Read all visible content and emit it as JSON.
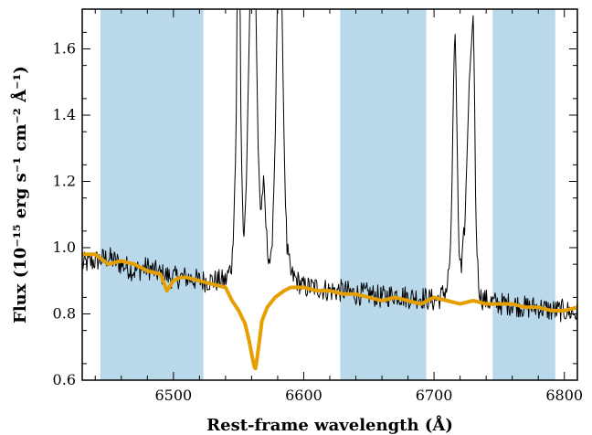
{
  "chart_data": {
    "type": "line",
    "title": "",
    "xlabel": "Rest-frame wavelength (Å)",
    "ylabel": "Flux (10⁻¹⁵ erg s⁻¹ cm⁻² Å⁻¹)",
    "xlim": [
      6430,
      6810
    ],
    "ylim": [
      0.6,
      1.72
    ],
    "xticks": [
      6500,
      6600,
      6700,
      6800
    ],
    "xtick_labels": [
      "6500",
      "6600",
      "6700",
      "6800"
    ],
    "yticks": [
      0.6,
      0.8,
      1.0,
      1.2,
      1.4,
      1.6
    ],
    "ytick_labels": [
      "0.6",
      "0.8",
      "1.0",
      "1.2",
      "1.4",
      "1.6"
    ],
    "grid": false,
    "shaded_regions": [
      {
        "x0": 6444,
        "x1": 6523
      },
      {
        "x0": 6628,
        "x1": 6694
      },
      {
        "x0": 6745,
        "x1": 6793
      }
    ],
    "colors": {
      "observed": "#000000",
      "model": "#E69F00",
      "band": "#b9d8ea"
    },
    "series": [
      {
        "style": "observed-spectrum",
        "x": [
          6430,
          6440,
          6450,
          6460,
          6470,
          6480,
          6490,
          6500,
          6510,
          6520,
          6530,
          6540,
          6545,
          6548,
          6549,
          6551,
          6552,
          6554,
          6556,
          6559,
          6561,
          6563,
          6565,
          6567,
          6569,
          6572,
          6575,
          6578,
          6580,
          6582,
          6583,
          6585,
          6587,
          6590,
          6595,
          6600,
          6610,
          6620,
          6630,
          6640,
          6650,
          6660,
          6670,
          6680,
          6690,
          6700,
          6705,
          6710,
          6713,
          6715,
          6716,
          6717,
          6719,
          6721,
          6724,
          6727,
          6730,
          6731,
          6732,
          6734,
          6736,
          6740,
          6750,
          6760,
          6770,
          6780,
          6790,
          6800,
          6810
        ],
        "y": [
          0.95,
          0.96,
          0.97,
          0.95,
          0.93,
          0.94,
          0.92,
          0.91,
          0.91,
          0.9,
          0.9,
          0.9,
          0.95,
          1.3,
          1.8,
          1.8,
          1.3,
          1.0,
          1.2,
          1.8,
          1.8,
          1.8,
          1.3,
          1.1,
          1.2,
          1.0,
          0.94,
          1.3,
          1.8,
          1.8,
          1.8,
          1.3,
          1.0,
          0.92,
          0.9,
          0.88,
          0.88,
          0.87,
          0.87,
          0.86,
          0.86,
          0.85,
          0.86,
          0.85,
          0.85,
          0.84,
          0.85,
          0.88,
          1.0,
          1.5,
          1.68,
          1.5,
          1.0,
          0.92,
          1.1,
          1.5,
          1.7,
          1.5,
          1.1,
          0.9,
          0.85,
          0.84,
          0.83,
          0.83,
          0.82,
          0.82,
          0.81,
          0.81,
          0.8
        ]
      },
      {
        "style": "model-fit",
        "x": [
          6430,
          6440,
          6450,
          6460,
          6470,
          6480,
          6490,
          6495,
          6500,
          6505,
          6510,
          6520,
          6530,
          6540,
          6545,
          6550,
          6555,
          6558,
          6560,
          6562,
          6563,
          6564,
          6566,
          6568,
          6572,
          6578,
          6585,
          6590,
          6600,
          6610,
          6620,
          6630,
          6640,
          6650,
          6660,
          6670,
          6680,
          6690,
          6700,
          6710,
          6720,
          6730,
          6740,
          6750,
          6760,
          6770,
          6780,
          6790,
          6800,
          6810
        ],
        "y": [
          0.98,
          0.98,
          0.95,
          0.96,
          0.95,
          0.93,
          0.92,
          0.87,
          0.9,
          0.91,
          0.91,
          0.9,
          0.89,
          0.88,
          0.84,
          0.81,
          0.77,
          0.72,
          0.68,
          0.64,
          0.635,
          0.66,
          0.72,
          0.78,
          0.82,
          0.85,
          0.87,
          0.88,
          0.88,
          0.87,
          0.87,
          0.86,
          0.86,
          0.85,
          0.84,
          0.85,
          0.84,
          0.83,
          0.85,
          0.84,
          0.83,
          0.84,
          0.83,
          0.83,
          0.83,
          0.82,
          0.82,
          0.81,
          0.81,
          0.82
        ]
      }
    ]
  }
}
